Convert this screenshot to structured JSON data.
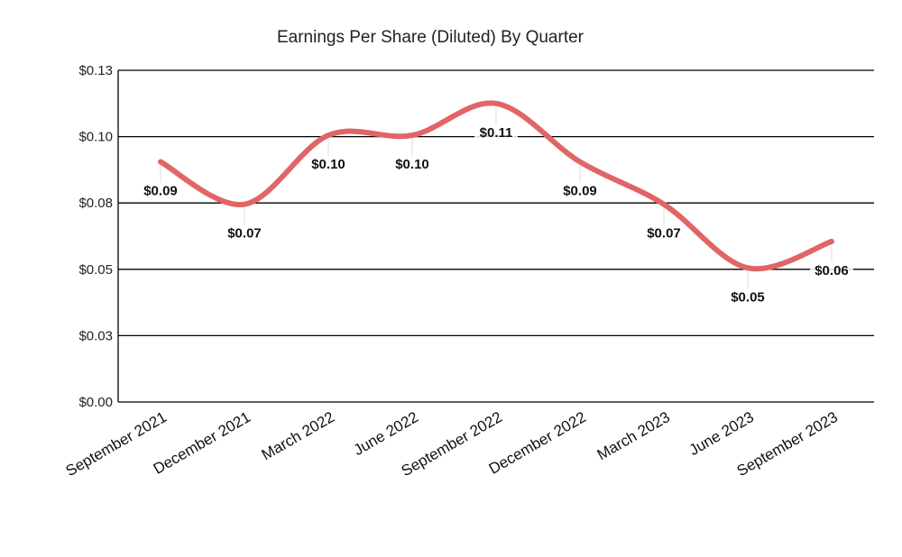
{
  "chart_data": {
    "type": "line",
    "title": "Earnings Per Share (Diluted) By Quarter",
    "xlabel": "",
    "ylabel": "",
    "categories": [
      "September 2021",
      "December 2021",
      "March 2022",
      "June 2022",
      "September 2022",
      "December 2022",
      "March 2023",
      "June 2023",
      "September 2023"
    ],
    "values": [
      0.09,
      0.07,
      0.1,
      0.1,
      0.11,
      0.09,
      0.07,
      0.05,
      0.06
    ],
    "plotted_values": [
      0.0905,
      0.0745,
      0.1005,
      0.1005,
      0.1125,
      0.0905,
      0.0745,
      0.0505,
      0.0605
    ],
    "data_labels": [
      "$0.09",
      "$0.07",
      "$0.10",
      "$0.10",
      "$0.11",
      "$0.09",
      "$0.07",
      "$0.05",
      "$0.06"
    ],
    "ylim": [
      0,
      0.125
    ],
    "yticks": [
      0,
      0.025,
      0.05,
      0.075,
      0.1,
      0.125
    ],
    "ytick_labels": [
      "$0.00",
      "$0.03",
      "$0.05",
      "$0.08",
      "$0.10",
      "$0.13"
    ],
    "grid": true,
    "legend": "none",
    "line_color": "#e06666",
    "smooth": true
  }
}
